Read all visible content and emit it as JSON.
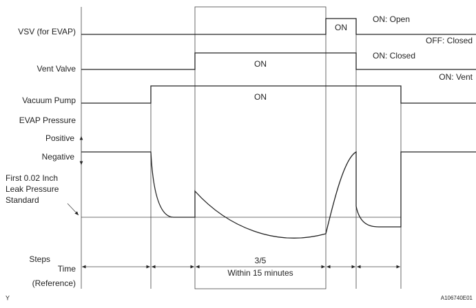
{
  "signals": [
    {
      "label": "VSV (for EVAP)",
      "on_label": "ON",
      "state_high": "ON: Open",
      "state_low": "OFF: Closed"
    },
    {
      "label": "Vent Valve",
      "on_label": "ON",
      "state_high": "ON: Closed",
      "state_low": "ON: Vent"
    },
    {
      "label": "Vacuum Pump",
      "on_label": "ON"
    }
  ],
  "pressure": {
    "label": "EVAP Pressure",
    "positive": "Positive",
    "negative": "Negative",
    "standard": "First 0.02 Inch\nLeak Pressure\nStandard"
  },
  "steps": {
    "label": "Steps",
    "time": "Time",
    "reference": "(Reference)",
    "step": "3/5",
    "duration": "Within 15 minutes"
  },
  "footer": {
    "left": "Y",
    "code": "A106740E01"
  }
}
